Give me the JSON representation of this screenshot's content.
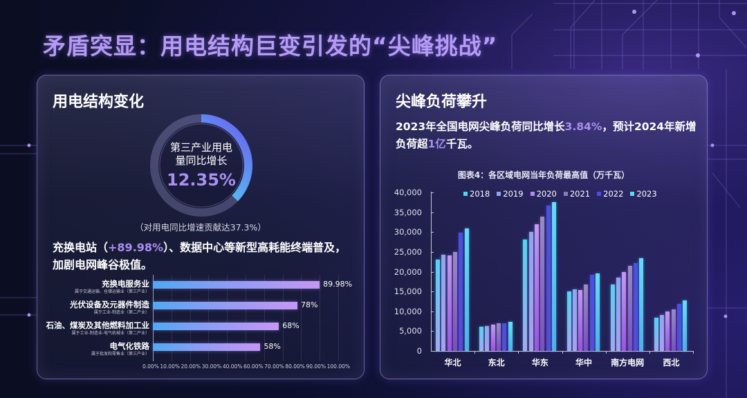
{
  "page": {
    "title": "矛盾突显：用电结构巨变引发的“尖峰挑战”"
  },
  "left_panel": {
    "title": "用电结构变化",
    "donut": {
      "label_line1": "第三产业用电",
      "label_line2": "量同比增长",
      "value": "12.35%",
      "contribution_pct": 37.3,
      "note": "（对用电同比增速贡献达37.3%）"
    },
    "desc_prefix": "充换电站（",
    "desc_highlight": "+89.98%",
    "desc_suffix": "）、数据中心等新型高耗能终端普及，加剧电网峰谷极值。"
  },
  "right_panel": {
    "title": "尖峰负荷攀升",
    "desc_part1": "2023年全国电网尖峰负荷同比增长",
    "desc_hl1": "3.84%",
    "desc_part2": "，预计2024年新增负荷超",
    "desc_hl2": "1亿",
    "desc_part3": "千瓦。"
  },
  "colors": {
    "title_purple": "#b49cf5",
    "highlight": "#a990f0",
    "series": [
      "#4fd6f2",
      "#8fa6f2",
      "#b48af2",
      "#8c7cb4",
      "#4b4ee6",
      "#58dcf6"
    ]
  },
  "chart_data": [
    {
      "type": "bar",
      "orientation": "horizontal",
      "title": "",
      "categories": [
        "充换电服务业",
        "光伏设备及元器件制造",
        "石油、煤炭及其他燃料加工业",
        "电气化铁路"
      ],
      "subcategories": [
        "属于交通运输、仓储运输业（第三产业）",
        "属于工业-制造业（第二产业）",
        "属于工业-制造业-电气机械业（第二产业）",
        "属于批发和零售业（第三产业）"
      ],
      "values": [
        89.98,
        78,
        68,
        58
      ],
      "value_labels": [
        "89.98%",
        "78%",
        "68%",
        "58%"
      ],
      "xlabel": "",
      "ylabel": "",
      "xlim": [
        0,
        100
      ],
      "x_ticks": [
        "0.00%",
        "10.00%",
        "20.00%",
        "30.00%",
        "40.00%",
        "60.00%",
        "70.00%",
        "80.00%",
        "90.00%",
        "100.00%"
      ],
      "grid": true
    },
    {
      "type": "bar",
      "title": "图表4：各区域电网当年负荷最高值（万千瓦）",
      "categories": [
        "华北",
        "东北",
        "华东",
        "华中",
        "南方电网",
        "西北"
      ],
      "series": [
        {
          "name": "2018",
          "values": [
            23000,
            6100,
            28200,
            15000,
            16700,
            8300
          ]
        },
        {
          "name": "2019",
          "values": [
            24300,
            6300,
            30000,
            15500,
            18500,
            9100
          ]
        },
        {
          "name": "2020",
          "values": [
            24100,
            6600,
            32000,
            15400,
            19900,
            9900
          ]
        },
        {
          "name": "2021",
          "values": [
            24900,
            6900,
            33900,
            16800,
            21500,
            10400
          ]
        },
        {
          "name": "2022",
          "values": [
            29800,
            6900,
            36600,
            19300,
            22100,
            11900
          ]
        },
        {
          "name": "2023",
          "values": [
            30900,
            7400,
            37600,
            19500,
            23400,
            12800
          ]
        }
      ],
      "xlabel": "",
      "ylabel": "",
      "ylim": [
        0,
        40000
      ],
      "y_ticks": [
        "0",
        "5,000",
        "10,000",
        "15,000",
        "20,000",
        "25,000",
        "30,000",
        "35,000",
        "40,000"
      ],
      "legend_position": "top",
      "grid": false
    }
  ]
}
